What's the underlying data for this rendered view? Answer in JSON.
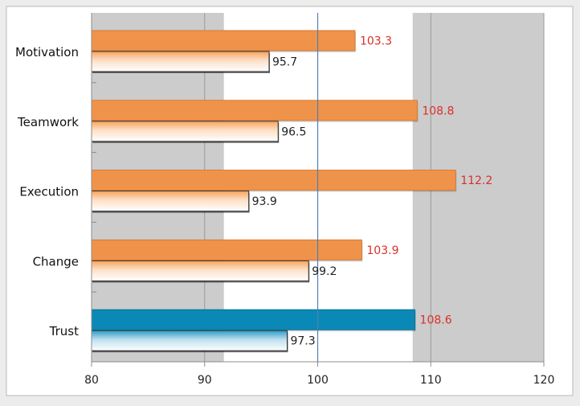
{
  "chart_data": {
    "type": "bar",
    "orientation": "horizontal",
    "categories": [
      "Motivation",
      "Teamwork",
      "Execution",
      "Change",
      "Trust"
    ],
    "series": [
      {
        "values": [
          103.3,
          108.8,
          112.2,
          103.9,
          108.6
        ]
      },
      {
        "values": [
          95.7,
          96.5,
          93.9,
          99.2,
          97.3
        ]
      }
    ],
    "xlim": [
      80,
      120
    ],
    "x_ticks": [
      "80",
      "90",
      "100",
      "110",
      "120"
    ],
    "reference_line": 100,
    "shaded_bands": [
      [
        80,
        91.7
      ],
      [
        108.4,
        120
      ]
    ],
    "colors": {
      "primary_bar": "#f0934a",
      "highlight_bar": "#0a89b6",
      "secondary_gradient_top": "#f7a35a",
      "secondary_gradient_top_highlight": "#2a9cc8",
      "primary_label": "#d9302a",
      "secondary_label": "#222222",
      "band": "#cccccc",
      "reference_line": "#4f7fb3"
    },
    "highlight_category": "Trust"
  }
}
